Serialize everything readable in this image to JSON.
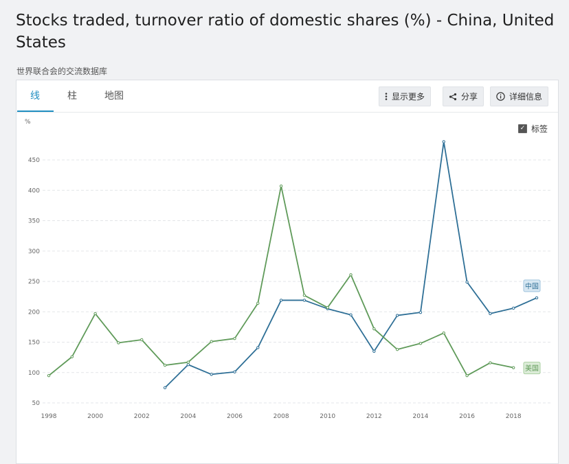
{
  "title": "Stocks traded, turnover ratio of domestic shares (%) - China, United States",
  "source": "世界联合会的交流数据库",
  "tabs": [
    {
      "label": "线",
      "active": true
    },
    {
      "label": "柱",
      "active": false
    },
    {
      "label": "地图",
      "active": false
    }
  ],
  "toolbar": {
    "more_label": "显示更多",
    "share_label": "分享",
    "details_label": "详细信息"
  },
  "labels_toggle": {
    "label": "标签",
    "checked": true
  },
  "colors": {
    "china": "#2e6f96",
    "us": "#5f9a59",
    "accent": "#1f8ec1"
  },
  "chart_data": {
    "type": "line",
    "ylabel": "%",
    "ylim": [
      50,
      500
    ],
    "yticks": [
      50,
      100,
      150,
      200,
      250,
      300,
      350,
      400,
      450
    ],
    "xlim": [
      1998,
      2019
    ],
    "xticks": [
      1998,
      2000,
      2002,
      2004,
      2006,
      2008,
      2010,
      2012,
      2014,
      2016,
      2018
    ],
    "grid": true,
    "series": [
      {
        "name": "中国",
        "color": "#2e6f96",
        "x": [
          2003,
          2004,
          2005,
          2006,
          2007,
          2008,
          2009,
          2010,
          2011,
          2012,
          2013,
          2014,
          2015,
          2016,
          2017,
          2018,
          2019
        ],
        "values": [
          75,
          113,
          97,
          101,
          141,
          219,
          219,
          205,
          195,
          135,
          194,
          199,
          480,
          249,
          197,
          206,
          223
        ]
      },
      {
        "name": "美国",
        "color": "#5f9a59",
        "x": [
          1998,
          1999,
          2000,
          2001,
          2002,
          2003,
          2004,
          2005,
          2006,
          2007,
          2008,
          2009,
          2010,
          2011,
          2012,
          2013,
          2014,
          2015,
          2016,
          2017,
          2018
        ],
        "values": [
          95,
          126,
          197,
          149,
          154,
          112,
          117,
          151,
          156,
          214,
          407,
          227,
          207,
          261,
          172,
          138,
          148,
          165,
          95,
          116,
          108
        ]
      }
    ]
  }
}
